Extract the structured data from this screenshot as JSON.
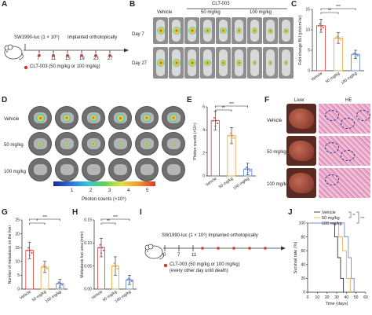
{
  "panels": {
    "A": "A",
    "B": "B",
    "C": "C",
    "D": "D",
    "E": "E",
    "F": "F",
    "G": "G",
    "H": "H",
    "I": "I",
    "J": "J"
  },
  "panel_a": {
    "cells": "SW1990-luc (1 × 10⁶)",
    "implant": "Implanted orthotopically",
    "days": [
      "7",
      "11",
      "15",
      "19",
      "23",
      "27"
    ],
    "treatment": "CLT-003 (50 mg/kg or 100 mg/kg)"
  },
  "panel_b": {
    "drug": "CLT-003",
    "groups": [
      "Vehicle",
      "50 mg/kg",
      "100 mg/kg"
    ],
    "rows": [
      "Day 7",
      "Day 27"
    ]
  },
  "panel_d": {
    "rows": [
      "Vehicle",
      "50 mg/kg",
      "100 mg/kg"
    ],
    "scale_ticks": [
      "1",
      "2",
      "3",
      "4",
      "5"
    ],
    "scale_label": "Photon counts (×10⁵)"
  },
  "panel_f": {
    "col1": "Liver",
    "col2": "HE",
    "rows": [
      "Vehicle",
      "50 mg/kg",
      "100 mg/kg"
    ]
  },
  "panel_i": {
    "cells": "SW1990-luc (1 × 10⁶) Implanted orthotopically",
    "days": [
      "0",
      "7",
      "11"
    ],
    "treatment": "CLT-003 (50 mg/kg or 100 mg/kg)",
    "schedule": "(every other day until death)"
  },
  "chart_data": [
    {
      "panel": "C",
      "type": "bar",
      "categories": [
        "Vehicle",
        "50 mg/kg",
        "100 mg/kg"
      ],
      "values": [
        11,
        8,
        4
      ],
      "errors": [
        1.6,
        1.3,
        1
      ],
      "ylabel": "Fold-change BLI (p/s/cm²/sr)",
      "ylim": [
        0,
        15
      ],
      "yticks": [
        "0",
        "5",
        "10",
        "15"
      ],
      "sig": [
        "**",
        "***"
      ],
      "colors": [
        "#d9534f",
        "#f0ad4e",
        "#6f8fd8"
      ]
    },
    {
      "panel": "E",
      "type": "bar",
      "categories": [
        "Vehicle",
        "50 mg/kg",
        "100 mg/kg"
      ],
      "values": [
        4.8,
        3.5,
        0.6
      ],
      "errors": [
        0.8,
        0.7,
        0.5
      ],
      "ylabel": "Photon counts (×10⁵)",
      "ylim": [
        0,
        6
      ],
      "yticks": [
        "0",
        "2",
        "4",
        "6"
      ],
      "sig": [
        "**",
        "***"
      ],
      "colors": [
        "#d9534f",
        "#f0ad4e",
        "#6f8fd8"
      ]
    },
    {
      "panel": "G",
      "type": "bar",
      "categories": [
        "Vehicle",
        "50 mg/kg",
        "100 mg/kg"
      ],
      "values": [
        14,
        8,
        2
      ],
      "errors": [
        3,
        2,
        1.5
      ],
      "ylabel": "Number of metastasis on the liver",
      "ylim": [
        0,
        25
      ],
      "yticks": [
        "0",
        "5",
        "10",
        "15",
        "20",
        "25"
      ],
      "sig": [
        "*",
        "***"
      ],
      "colors": [
        "#d9534f",
        "#f0ad4e",
        "#6f8fd8"
      ]
    },
    {
      "panel": "H",
      "type": "bar",
      "categories": [
        "Vehicle",
        "50 mg/kg",
        "100 mg/kg"
      ],
      "values": [
        0.09,
        0.05,
        0.02
      ],
      "errors": [
        0.02,
        0.02,
        0.01
      ],
      "ylabel": "Metastasis foci area (mm²)",
      "ylim": [
        0,
        0.15
      ],
      "yticks": [
        "0.00",
        "0.05",
        "0.10",
        "0.15"
      ],
      "sig": [
        "**",
        "***"
      ],
      "colors": [
        "#d9534f",
        "#f0ad4e",
        "#6f8fd8"
      ]
    },
    {
      "panel": "J",
      "type": "line",
      "xlabel": "Time (days)",
      "ylabel": "Survival rate (%)",
      "xlim": [
        0,
        60
      ],
      "ylim": [
        0,
        100
      ],
      "xticks": [
        "0",
        "10",
        "20",
        "30",
        "40",
        "50",
        "60"
      ],
      "yticks": [
        "0",
        "20",
        "40",
        "60",
        "80",
        "100"
      ],
      "sig": [
        "**",
        "***"
      ],
      "series": [
        {
          "name": "Vehicle",
          "color": "#333333",
          "x": [
            0,
            28,
            28,
            31,
            31,
            34,
            34,
            37,
            37
          ],
          "y": [
            100,
            100,
            80,
            80,
            50,
            50,
            20,
            20,
            0
          ]
        },
        {
          "name": "50 mg/kg",
          "color": "#f0ad4e",
          "x": [
            0,
            32,
            32,
            36,
            36,
            40,
            40,
            44,
            44
          ],
          "y": [
            100,
            100,
            80,
            80,
            60,
            60,
            20,
            20,
            0
          ]
        },
        {
          "name": "100 mg/kg",
          "color": "#6f8fd8",
          "x": [
            0,
            38,
            38,
            42,
            42,
            45,
            45,
            48,
            48
          ],
          "y": [
            100,
            100,
            80,
            80,
            50,
            50,
            20,
            20,
            0
          ]
        }
      ]
    }
  ]
}
